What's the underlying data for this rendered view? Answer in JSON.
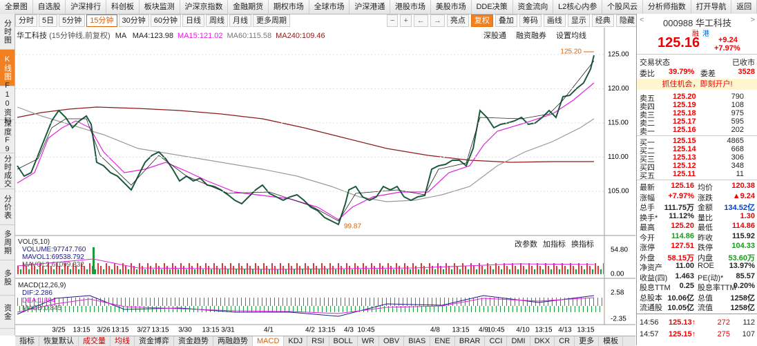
{
  "menu": [
    "全景图",
    "自选股",
    "沪深排行",
    "科创板",
    "板块监测",
    "沪深京指数",
    "金融期货",
    "期权市场",
    "全球市场",
    "沪深港通",
    "港股市场",
    "美股市场",
    "DDE决策",
    "资金流向",
    "L2核心内参",
    "个股风云",
    "分析师指数",
    "打开导航",
    "返回"
  ],
  "side_tabs": [
    "分时图",
    "K线图",
    "F10资料",
    "深度F9",
    "分时成交",
    "分价表",
    "多周期",
    "多股",
    "资金"
  ],
  "periods": [
    "分时",
    "5日",
    "5分钟",
    "15分钟",
    "30分钟",
    "60分钟",
    "日线",
    "周线",
    "月线",
    "更多周期"
  ],
  "tools": [
    "亮点",
    "复权",
    "叠加",
    "筹码",
    "画线",
    "显示",
    "经典",
    "隐藏"
  ],
  "chart": {
    "name": "华工科技",
    "desc": "(15分钟线,前复权)",
    "ma": "MA",
    "ma_values": [
      "MA4:123.98",
      "MA15:121.02",
      "MA60:115.58",
      "MA240:109.46"
    ],
    "links": [
      "深股通",
      "融资融券",
      "设置均线"
    ],
    "ylim": [
      98.84,
      127.12
    ],
    "yticks": [
      {
        "value": 125,
        "label": "125.00"
      },
      {
        "value": 120,
        "label": "120.00"
      },
      {
        "value": 115,
        "label": "115.00"
      },
      {
        "value": 110,
        "label": "110.00"
      },
      {
        "value": 105,
        "label": "105.00"
      }
    ],
    "high": {
      "value": 125.2,
      "label": "125.20"
    },
    "low": {
      "value": 99.87,
      "label": "99.87"
    }
  },
  "volume": {
    "title": "VOL(5,10)",
    "values": [
      "VOLUME:97747.760",
      "MAVOL1:69538.792",
      "MAVOL2:61099.332"
    ],
    "buttons": [
      "改参数",
      "加指标",
      "换指标"
    ],
    "ticks": [
      "54.80",
      "0.00"
    ]
  },
  "macd": {
    "title": "MACD(12,26,9)",
    "values": [
      "DIF:2.286",
      "DEA:1.864",
      "MACD:0.845"
    ],
    "ticks": [
      "2.58",
      "-2.35"
    ]
  },
  "x_labels": [
    "3/25",
    "13:15",
    "3/26",
    "13:15",
    "3/27",
    "13:15",
    "3/30",
    "13:15",
    "3/31",
    "4/1",
    "4/2",
    "13:15",
    "4/3",
    "10:45",
    "4/8",
    "13:15",
    "4/9",
    "10:45",
    "4/10",
    "13:15",
    "4/13",
    "13:15"
  ],
  "bottom_tabs": [
    "指标",
    "恢复默认",
    "成交量",
    "均线",
    "资金博弈",
    "资金趋势",
    "两融趋势",
    "MACD",
    "KDJ",
    "RSI",
    "BOLL",
    "WR",
    "OBV",
    "BIAS",
    "ENE",
    "BRAR",
    "CCI",
    "DMI",
    "DKX",
    "CR",
    "更多",
    "模板"
  ],
  "quote": {
    "code": "000988 华工科技",
    "tags": [
      "融",
      "港"
    ],
    "price": "125.16",
    "change": "+9.24",
    "pct": "+7.97%",
    "status_label": "交易状态",
    "status": "已收市",
    "wb_label": "委比",
    "wb": "39.79%",
    "wc_label": "委差",
    "wc": "3528",
    "ad": "抓住机会，即刻开户!"
  },
  "sells": [
    [
      "卖五",
      "125.20",
      "790"
    ],
    [
      "卖四",
      "125.19",
      "108"
    ],
    [
      "卖三",
      "125.18",
      "975"
    ],
    [
      "卖二",
      "125.17",
      "595"
    ],
    [
      "卖一",
      "125.16",
      "202"
    ]
  ],
  "buys": [
    [
      "买一",
      "125.15",
      "4865"
    ],
    [
      "买二",
      "125.14",
      "668"
    ],
    [
      "买三",
      "125.13",
      "306"
    ],
    [
      "买四",
      "125.12",
      "348"
    ],
    [
      "买五",
      "125.11",
      "11"
    ]
  ],
  "stats": [
    [
      "最新",
      "125.16",
      "均价",
      "120.38"
    ],
    [
      "涨幅",
      "+7.97%",
      "涨跌",
      "▲9.24"
    ],
    [
      "总手",
      "111.75万",
      "金额",
      "134.52亿"
    ],
    [
      "换手*",
      "11.12%",
      "量比",
      "1.30"
    ],
    [
      "最高",
      "125.20",
      "最低",
      "114.86"
    ],
    [
      "今开",
      "114.86",
      "昨收",
      "115.92"
    ],
    [
      "涨停",
      "127.51",
      "跌停",
      "104.33"
    ],
    [
      "外盘",
      "58.15万",
      "内盘",
      "53.60万"
    ],
    [
      "净资产",
      "11.00",
      "ROE",
      "13.97%"
    ],
    [
      "收益(四)",
      "1.463",
      "PE(动)*",
      "85.57"
    ],
    [
      "股息TTM",
      "0.25",
      "股息率TTM",
      "0.20%"
    ],
    [
      "总股本",
      "10.06亿",
      "总值",
      "1258亿"
    ],
    [
      "流通股",
      "10.05亿",
      "流值",
      "1258亿"
    ]
  ],
  "trades": [
    [
      "14:56",
      "125.13↑",
      "272",
      "112"
    ],
    [
      "14:57",
      "125.15↑",
      "275",
      "107"
    ]
  ]
}
